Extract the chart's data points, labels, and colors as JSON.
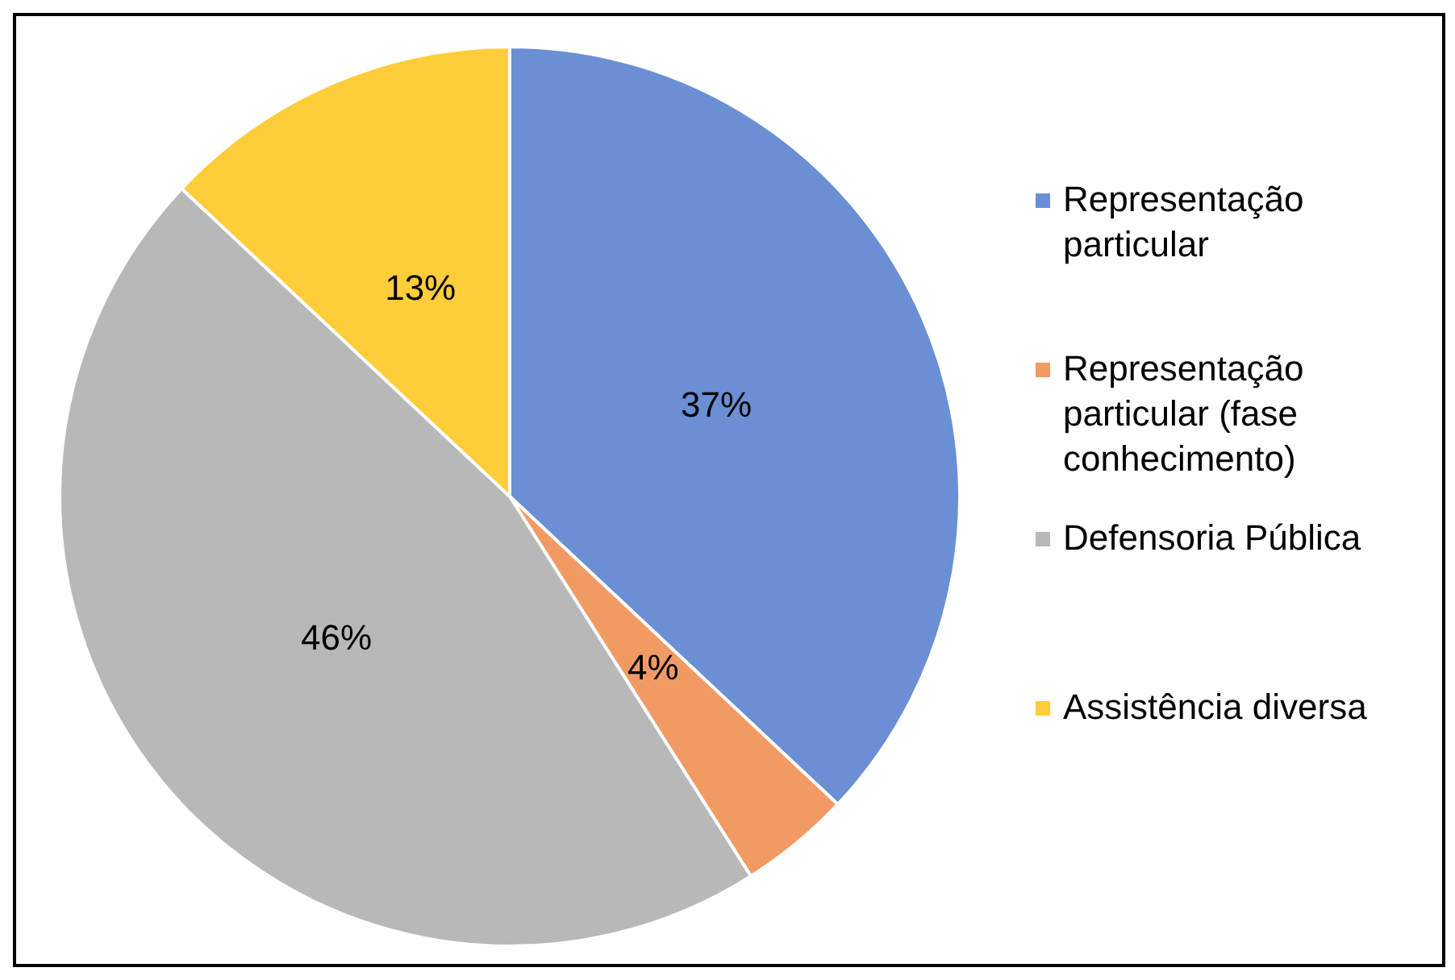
{
  "chart_data": {
    "type": "pie",
    "categories": [
      "Representação particular",
      "Representação particular (fase conhecimento)",
      "Defensoria Pública",
      "Assistência diversa"
    ],
    "values": [
      37,
      4,
      46,
      13
    ],
    "colors": [
      "#6a8fd4",
      "#f29a64",
      "#b8b8b8",
      "#ffcd3a"
    ],
    "value_labels": [
      "37%",
      "4%",
      "46%",
      "13%"
    ],
    "legend": "right"
  }
}
